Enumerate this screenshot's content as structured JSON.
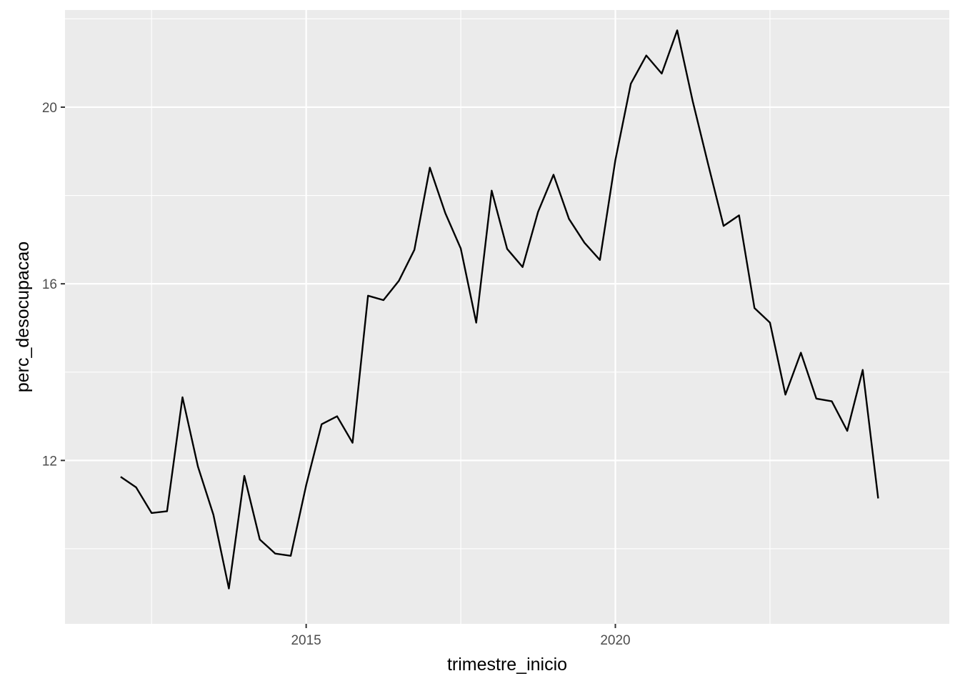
{
  "chart_data": {
    "type": "line",
    "title": "",
    "xlabel": "trimestre_inicio",
    "ylabel": "perc_desocupacao",
    "x_ticks": [
      2015,
      2020
    ],
    "x_minor_ticks": [
      2012.5,
      2017.5,
      2022.5
    ],
    "y_ticks": [
      12,
      16,
      20
    ],
    "y_minor_ticks": [
      10,
      14,
      18,
      22
    ],
    "xlim": [
      2011.1,
      2025.4
    ],
    "ylim": [
      8.3,
      22.2
    ],
    "grid": true,
    "legend": "none",
    "series": [
      {
        "line_color": "#000000",
        "x": [
          2012.0,
          2012.25,
          2012.5,
          2012.75,
          2013.0,
          2013.25,
          2013.5,
          2013.75,
          2014.0,
          2014.25,
          2014.5,
          2014.75,
          2015.0,
          2015.25,
          2015.5,
          2015.75,
          2016.0,
          2016.25,
          2016.5,
          2016.75,
          2017.0,
          2017.25,
          2017.5,
          2017.75,
          2018.0,
          2018.25,
          2018.5,
          2018.75,
          2019.0,
          2019.25,
          2019.5,
          2019.75,
          2020.0,
          2020.25,
          2020.5,
          2020.75,
          2021.0,
          2021.25,
          2021.5,
          2021.75,
          2022.0,
          2022.25,
          2022.5,
          2022.75,
          2023.0,
          2023.25,
          2023.5,
          2023.75,
          2024.0,
          2024.25
        ],
        "values": [
          11.63,
          11.39,
          10.81,
          10.85,
          13.43,
          11.86,
          10.77,
          9.1,
          11.65,
          10.21,
          9.89,
          9.84,
          11.44,
          12.82,
          13.0,
          12.4,
          15.73,
          15.63,
          16.07,
          16.77,
          18.63,
          17.6,
          16.8,
          15.12,
          18.11,
          16.79,
          16.38,
          17.63,
          18.47,
          17.47,
          16.93,
          16.54,
          18.8,
          20.53,
          21.17,
          20.76,
          21.74,
          20.14,
          18.71,
          17.31,
          17.55,
          15.45,
          15.12,
          13.49,
          14.44,
          13.4,
          13.34,
          12.67,
          14.05,
          11.14
        ]
      }
    ]
  }
}
